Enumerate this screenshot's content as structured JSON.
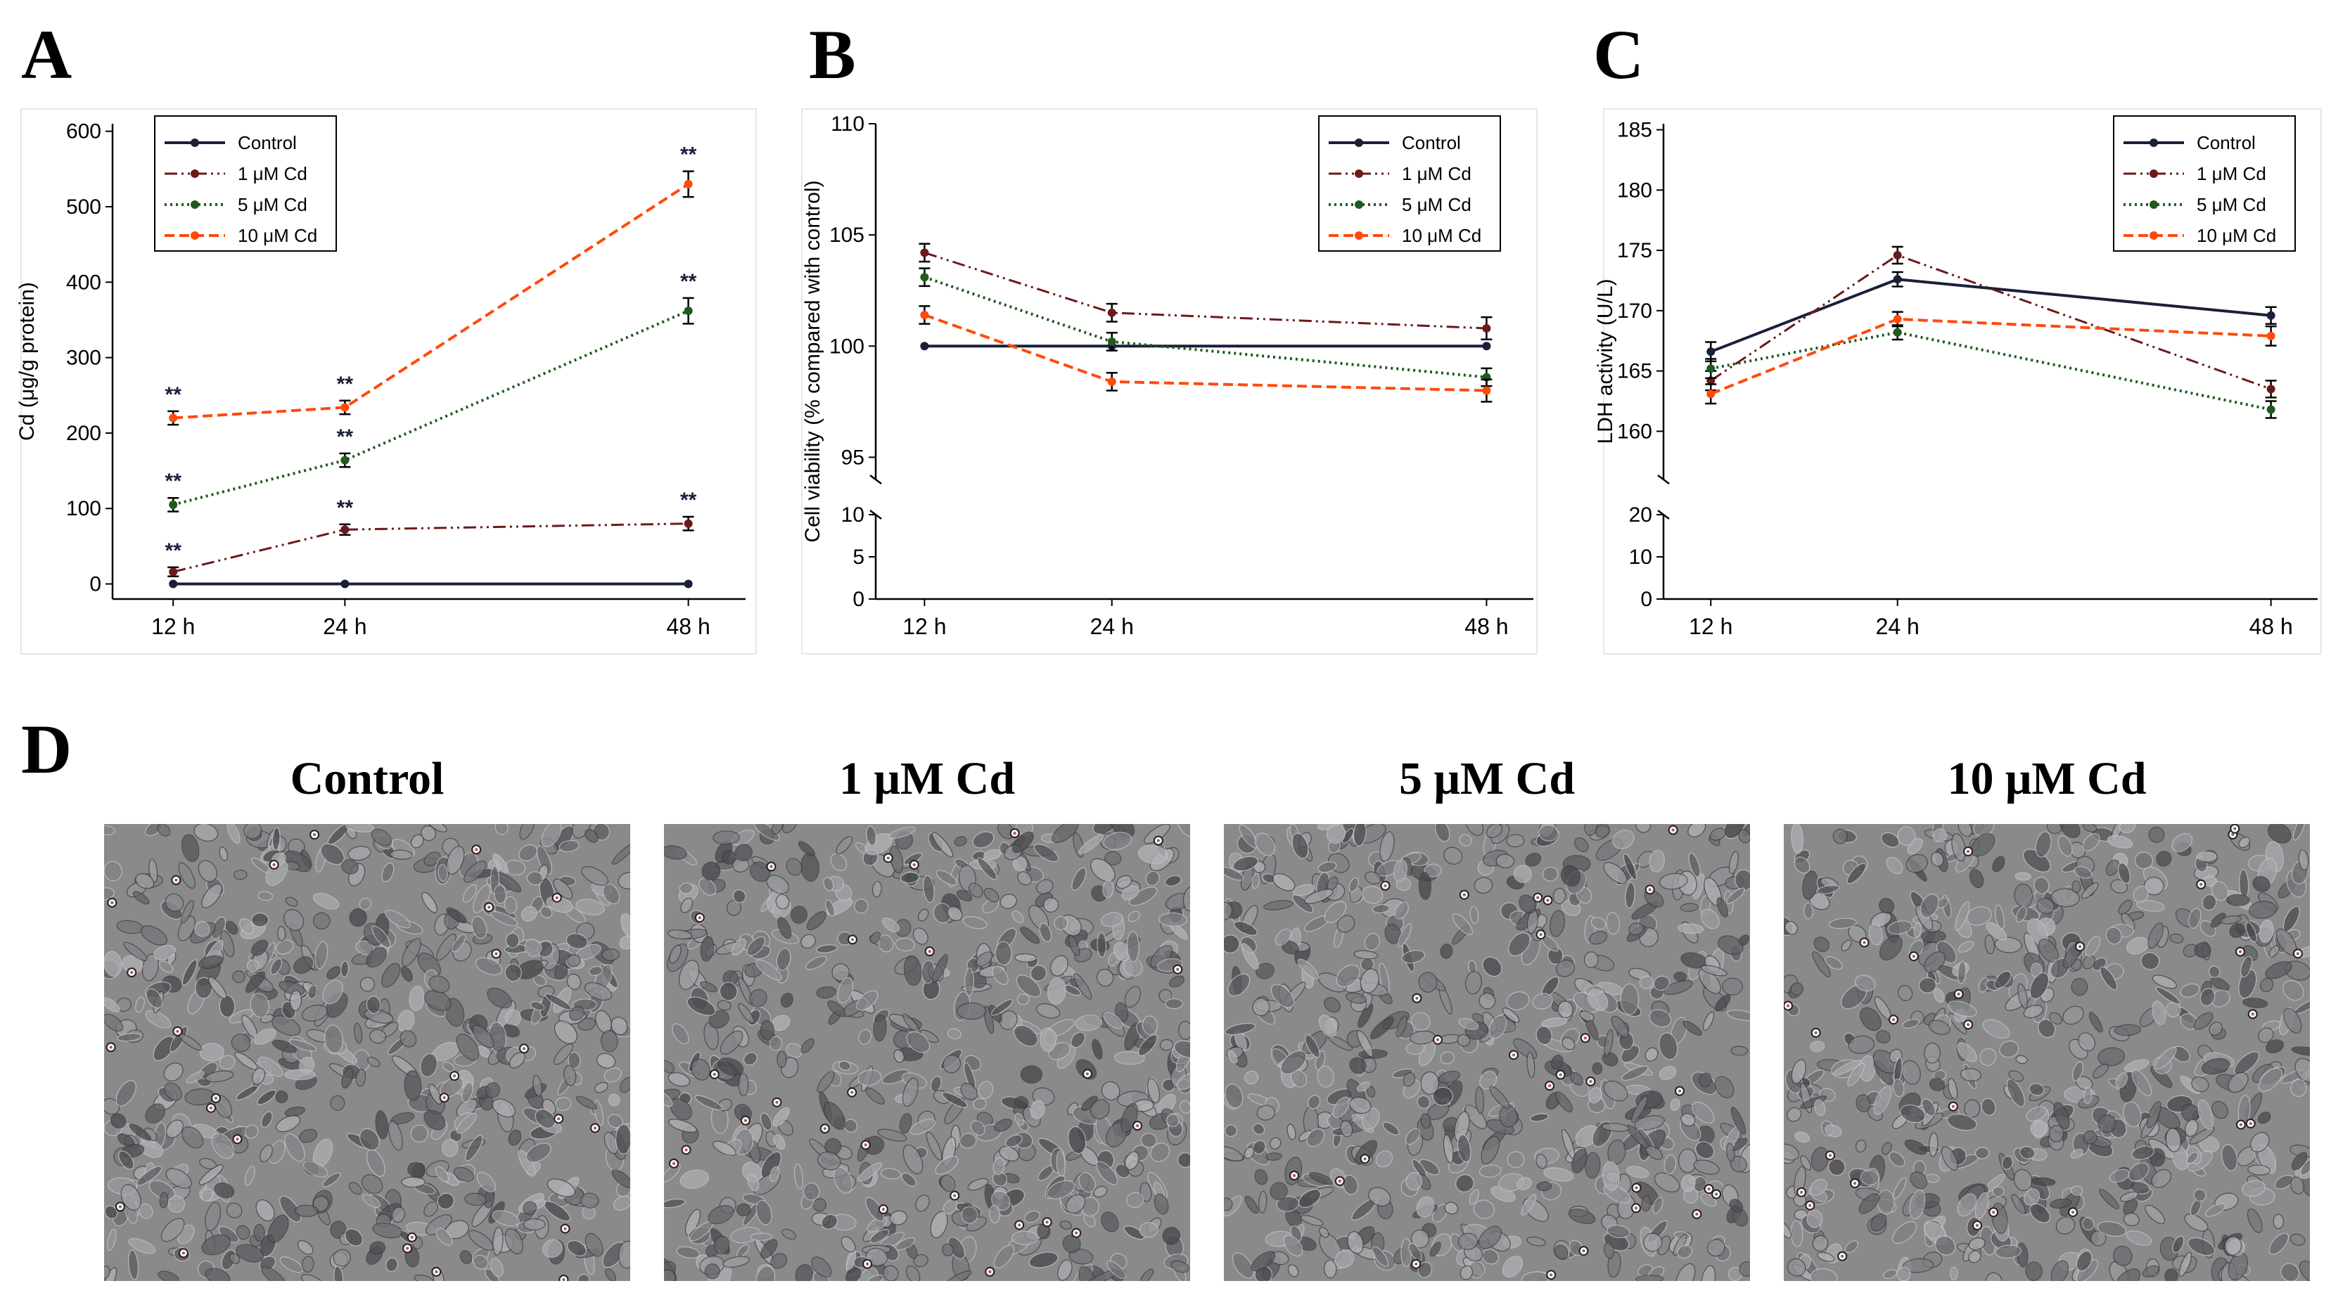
{
  "panels": {
    "a": "A",
    "b": "B",
    "c": "C",
    "d": "D"
  },
  "colors": {
    "control": "#1a1f3a",
    "cd1": "#6b1a1a",
    "cd5": "#1f5a1f",
    "cd10": "#ff4a0a"
  },
  "chart_data": [
    {
      "id": "A",
      "type": "line",
      "title": "",
      "xlabel": "",
      "ylabel": "Cd (μg/g protein)",
      "categories": [
        "12 h",
        "24 h",
        "48 h"
      ],
      "x": [
        12,
        24,
        48
      ],
      "xlim": [
        8.5,
        52
      ],
      "ylim": [
        -20,
        610
      ],
      "yticks": [
        0,
        100,
        200,
        300,
        400,
        500,
        600
      ],
      "legend": "top-left",
      "series": [
        {
          "name": "Control",
          "values": [
            0,
            0,
            0
          ],
          "err": [
            0,
            0,
            0
          ],
          "sig": [
            "",
            "",
            ""
          ]
        },
        {
          "name": "1 μM Cd",
          "values": [
            16,
            72,
            80
          ],
          "err": [
            6,
            7,
            9
          ],
          "sig": [
            "**",
            "**",
            "**"
          ]
        },
        {
          "name": "5 μM Cd",
          "values": [
            105,
            164,
            362
          ],
          "err": [
            9,
            9,
            17
          ],
          "sig": [
            "**",
            "**",
            "**"
          ]
        },
        {
          "name": "10 μM Cd",
          "values": [
            220,
            234,
            530
          ],
          "err": [
            9,
            9,
            17
          ],
          "sig": [
            "**",
            "**",
            "**"
          ]
        }
      ]
    },
    {
      "id": "B",
      "type": "line",
      "title": "",
      "xlabel": "",
      "ylabel": "Cell viability (% compared with control)",
      "categories": [
        "12 h",
        "24 h",
        "48 h"
      ],
      "x": [
        12,
        24,
        48
      ],
      "xlim": [
        10,
        51
      ],
      "axis_break": true,
      "lower_ylim": [
        0,
        10
      ],
      "lower_yticks": [
        0,
        5,
        10
      ],
      "upper_ylim": [
        94,
        110
      ],
      "upper_yticks": [
        95,
        100,
        105,
        110
      ],
      "legend": "top-right",
      "series": [
        {
          "name": "Control",
          "values": [
            100,
            100,
            100
          ],
          "err": [
            0,
            0,
            0
          ]
        },
        {
          "name": "1 μM Cd",
          "values": [
            104.2,
            101.5,
            100.8
          ],
          "err": [
            0.4,
            0.4,
            0.5
          ]
        },
        {
          "name": "5 μM Cd",
          "values": [
            103.1,
            100.2,
            98.6
          ],
          "err": [
            0.4,
            0.4,
            0.4
          ]
        },
        {
          "name": "10 μM Cd",
          "values": [
            101.4,
            98.4,
            98.0
          ],
          "err": [
            0.4,
            0.4,
            0.5
          ]
        }
      ]
    },
    {
      "id": "C",
      "type": "line",
      "title": "",
      "xlabel": "",
      "ylabel": "LDH activity (U/L)",
      "categories": [
        "12 h",
        "24 h",
        "48 h"
      ],
      "x": [
        12,
        24,
        48
      ],
      "xlim": [
        10,
        51
      ],
      "axis_break": true,
      "lower_ylim": [
        0,
        20
      ],
      "lower_yticks": [
        0,
        10,
        20
      ],
      "upper_ylim": [
        156,
        185.5
      ],
      "upper_yticks": [
        160,
        165,
        170,
        175,
        180,
        185
      ],
      "legend": "top-right",
      "series": [
        {
          "name": "Control",
          "values": [
            166.6,
            172.6,
            169.6
          ],
          "err": [
            0.8,
            0.6,
            0.7
          ]
        },
        {
          "name": "1 μM Cd",
          "values": [
            164.2,
            174.6,
            163.5
          ],
          "err": [
            0.8,
            0.7,
            0.7
          ]
        },
        {
          "name": "5 μM Cd",
          "values": [
            165.2,
            168.2,
            161.8
          ],
          "err": [
            0.8,
            0.6,
            0.7
          ]
        },
        {
          "name": "10 μM Cd",
          "values": [
            163.1,
            169.3,
            167.9
          ],
          "err": [
            0.8,
            0.6,
            0.8
          ]
        }
      ]
    }
  ],
  "micrographs": [
    {
      "title": "Control"
    },
    {
      "title": "1 μM Cd"
    },
    {
      "title": "5 μM Cd"
    },
    {
      "title": "10 μM Cd"
    }
  ]
}
